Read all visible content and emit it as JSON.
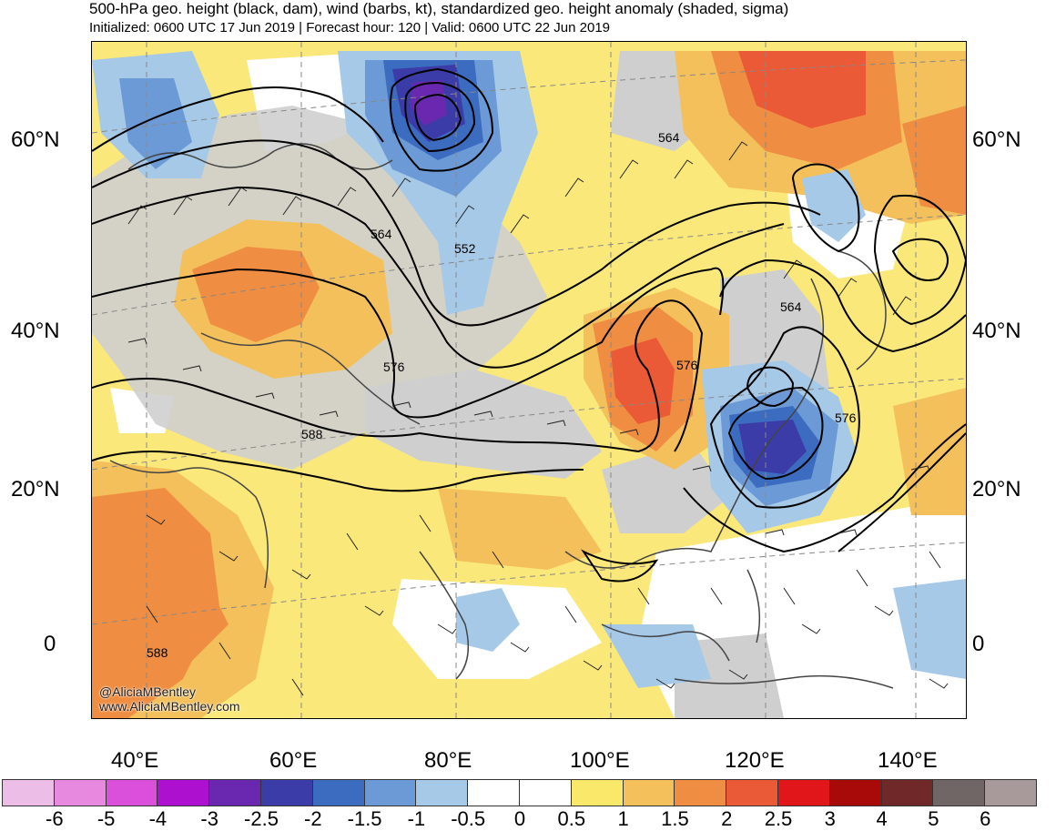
{
  "header": {
    "title": "500-hPa geo. height (black, dam), wind (barbs, kt), standardized geo. height anomaly (shaded, sigma)",
    "subtitle": "Initialized: 0600 UTC 17 Jun 2019 | Forecast hour: 120 | Valid: 0600 UTC 22 Jun 2019"
  },
  "map": {
    "lat_labels_left": [
      "60°N",
      "40°N",
      "20°N",
      "0"
    ],
    "lat_labels_right": [
      "60°N",
      "40°N",
      "20°N",
      "0"
    ],
    "lon_labels": [
      "40°E",
      "60°E",
      "80°E",
      "100°E",
      "120°E",
      "140°E"
    ],
    "contour_labels": [
      "564",
      "564",
      "552",
      "564",
      "576",
      "576",
      "576",
      "588",
      "588"
    ],
    "credit_line1": "@AliciaMBentley",
    "credit_line2": "www.AliciaMBentley.com"
  },
  "colorbar": {
    "ticks": [
      "-6",
      "-5",
      "-4",
      "-3",
      "-2.5",
      "-2",
      "-1.5",
      "-1",
      "-0.5",
      "0",
      "0.5",
      "1",
      "1.5",
      "2",
      "2.5",
      "3",
      "4",
      "5",
      "6"
    ],
    "colors": [
      "#ecbde6",
      "#e889e0",
      "#da50da",
      "#ae10d0",
      "#6a28b0",
      "#3c3ca8",
      "#3c6cc0",
      "#6c9ad6",
      "#a6c9e8",
      "#ffffff",
      "#ffffff",
      "#fae86a",
      "#f3c05c",
      "#ef8e42",
      "#eb5a36",
      "#e0161a",
      "#a80a0a",
      "#702828",
      "#706666",
      "#a89a9a"
    ]
  }
}
